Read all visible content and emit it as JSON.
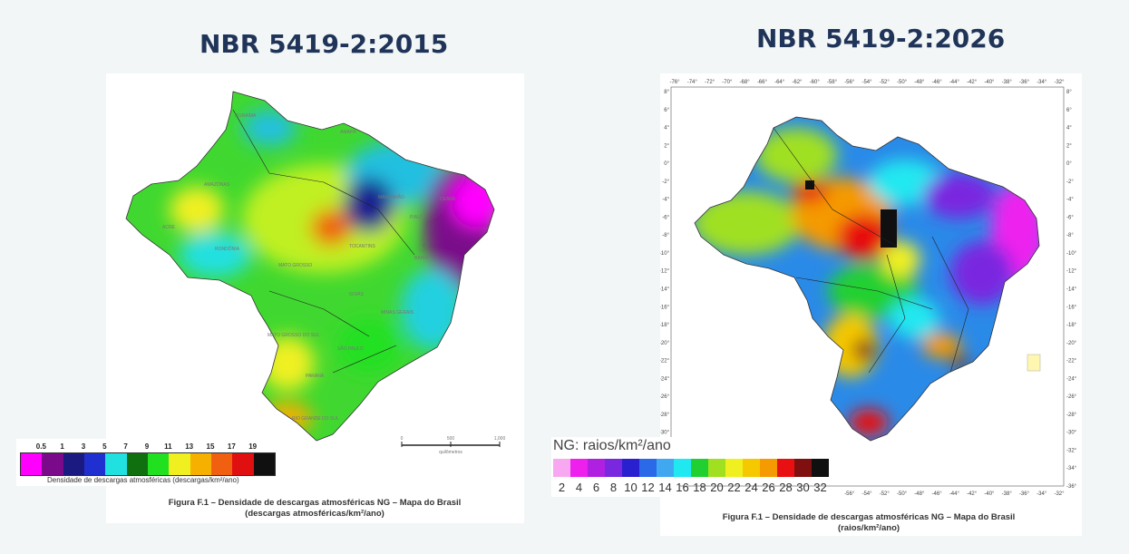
{
  "titles": {
    "left": "NBR 5419-2:2015",
    "right": "NBR 5419-2:2026"
  },
  "map_2015": {
    "legend_values": [
      "0.5",
      "1",
      "3",
      "5",
      "7",
      "9",
      "11",
      "13",
      "15",
      "17",
      "19"
    ],
    "legend_colors": [
      "#ff00ff",
      "#7a0a8a",
      "#1a1a80",
      "#2030d0",
      "#20e0e0",
      "#107010",
      "#20e020",
      "#f0f020",
      "#f5b000",
      "#f06010",
      "#e01010",
      "#101010"
    ],
    "legend_caption": "Densidade de descargas atmosféricas (descargas/km²/ano)",
    "scale_labels": [
      "0",
      "500",
      "1,000"
    ],
    "scale_unit": "quilômetros",
    "figure_caption_line1": "Figura F.1 – Densidade de descargas atmosféricas NG – Mapa do Brasil",
    "figure_caption_line2": "(descargas atmosféricas/km²/ano)",
    "state_labels": [
      "AMAPÁ",
      "AMAZONAS",
      "ACRE",
      "RONDÔNIA",
      "MATO GROSSO",
      "MARANHÃO",
      "CEARÁ",
      "PIAUÍ",
      "BAHIA",
      "GOIÁS",
      "MINAS GERAIS",
      "SÃO PAULO",
      "PARANÁ",
      "RIO GRANDE DO SUL",
      "MATO GROSSO DO SUL",
      "TOCANTINS",
      "RORAIMA"
    ]
  },
  "map_2026": {
    "legend_label": "NG: raios/km²/ano",
    "legend_values": [
      "2",
      "4",
      "6",
      "8",
      "10",
      "12",
      "14",
      "16",
      "18",
      "20",
      "22",
      "24",
      "26",
      "28",
      "30",
      "32"
    ],
    "legend_colors": [
      "#f7a8f0",
      "#ee20ee",
      "#b020e0",
      "#7a28e0",
      "#2a20d0",
      "#2a6ae8",
      "#40a8f0",
      "#20e8f0",
      "#20d030",
      "#a0e020",
      "#f0f020",
      "#f5c800",
      "#f59a00",
      "#e81010",
      "#801010",
      "#101010"
    ],
    "top_longitudes": [
      "-76°",
      "-74°",
      "-72°",
      "-70°",
      "-68°",
      "-66°",
      "-64°",
      "-62°",
      "-60°",
      "-58°",
      "-56°",
      "-54°",
      "-52°",
      "-50°",
      "-48°",
      "-46°",
      "-44°",
      "-42°",
      "-40°",
      "-38°",
      "-36°",
      "-34°",
      "-32°"
    ],
    "bottom_longitudes": [
      "-56°",
      "-54°",
      "-52°",
      "-50°",
      "-48°",
      "-46°",
      "-44°",
      "-42°",
      "-40°",
      "-38°",
      "-36°",
      "-34°",
      "-32°"
    ],
    "latitudes": [
      "8°",
      "6°",
      "4°",
      "2°",
      "0°",
      "-2°",
      "-4°",
      "-6°",
      "-8°",
      "-10°",
      "-12°",
      "-14°",
      "-16°",
      "-18°",
      "-20°",
      "-22°",
      "-24°",
      "-26°",
      "-28°",
      "-30°",
      "-32°",
      "-34°",
      "-36°"
    ],
    "figure_caption_line1": "Figura F.1 – Densidade de descargas atmosféricas NG – Mapa do Brasil",
    "figure_caption_line2": "(raios/km²/ano)"
  }
}
